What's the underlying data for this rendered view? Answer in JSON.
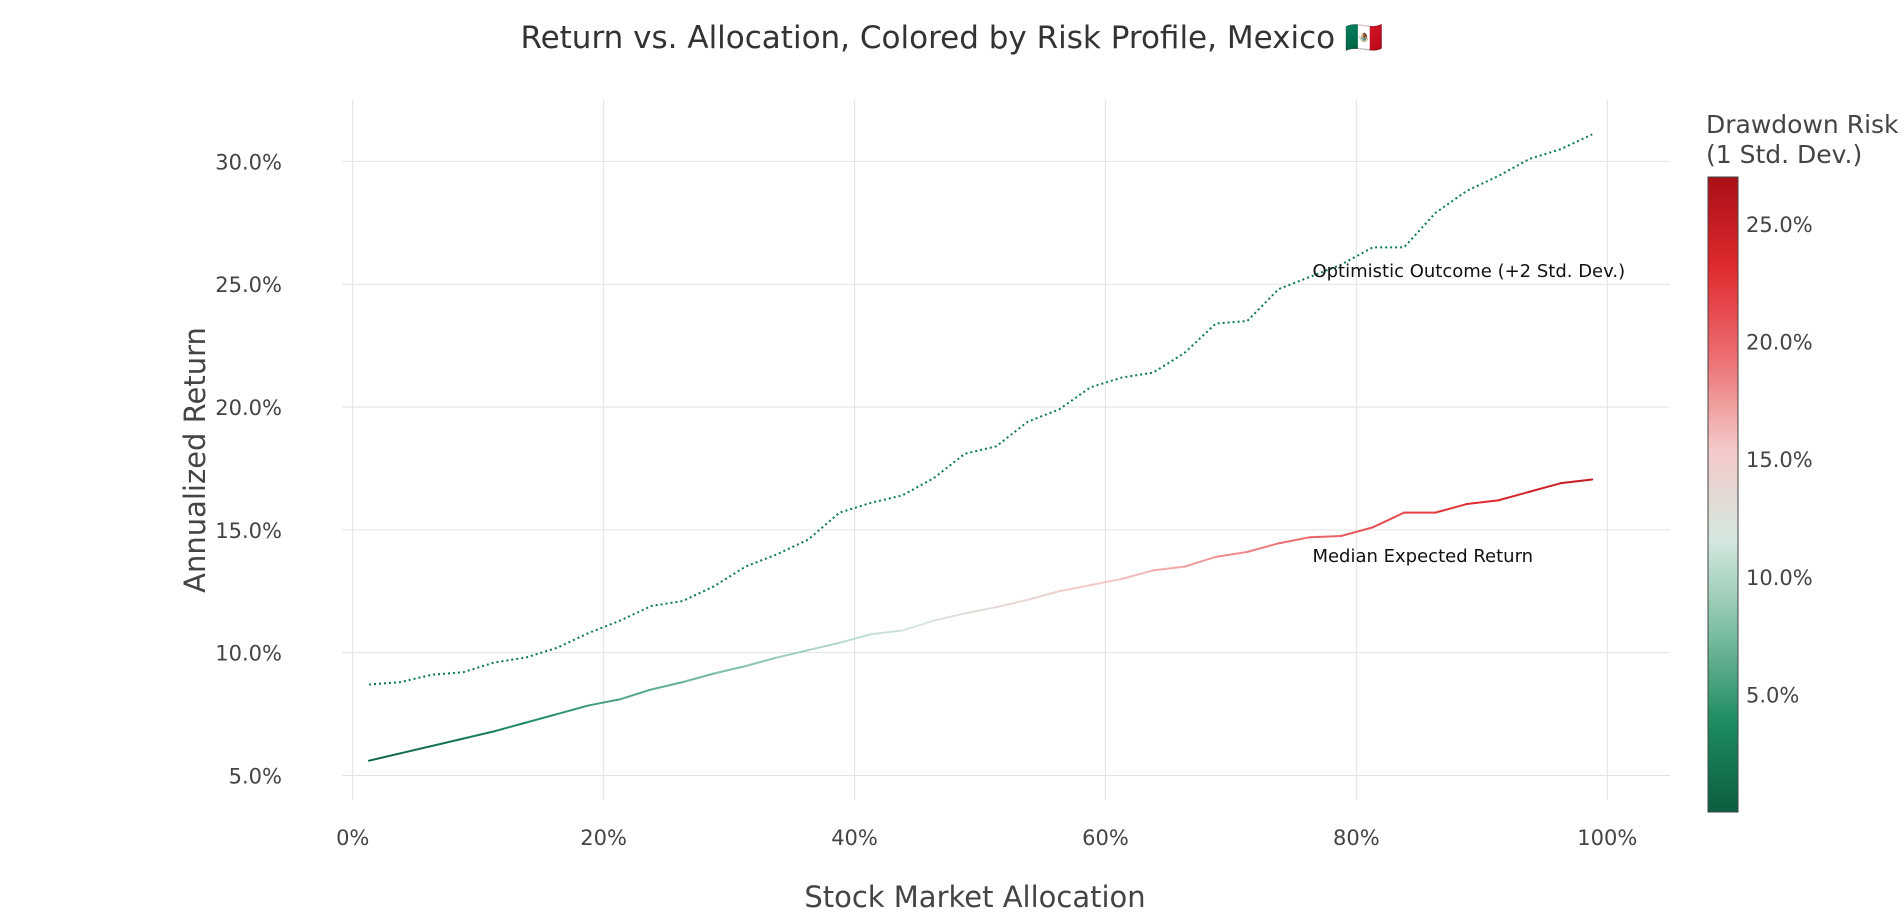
{
  "chart_data": {
    "type": "line",
    "title": "Return vs. Allocation, Colored by Risk Profile, Mexico 🇲🇽",
    "xlabel": "Stock Market Allocation",
    "ylabel": "Annualized Return",
    "xlim": [
      -5,
      105
    ],
    "ylim": [
      4.0,
      32.5
    ],
    "x_ticks": [
      0,
      20,
      40,
      60,
      80,
      100
    ],
    "x_tick_labels": [
      "0%",
      "20%",
      "40%",
      "60%",
      "80%",
      "100%"
    ],
    "y_ticks": [
      5,
      10,
      15,
      20,
      25,
      30
    ],
    "y_tick_labels": [
      "5.0%",
      "10.0%",
      "15.0%",
      "20.0%",
      "25.0%",
      "30.0%"
    ],
    "grid": true,
    "x": [
      1.3,
      3.8,
      6.3,
      8.8,
      11.3,
      13.8,
      16.3,
      18.8,
      21.3,
      23.8,
      26.3,
      28.8,
      31.3,
      33.8,
      36.3,
      38.8,
      41.3,
      43.8,
      46.3,
      48.8,
      51.3,
      53.8,
      56.3,
      58.8,
      61.3,
      63.8,
      66.3,
      68.8,
      71.3,
      73.8,
      76.3,
      78.8,
      81.3,
      83.8,
      86.3,
      88.8,
      91.3,
      93.8,
      96.3,
      98.8
    ],
    "series": [
      {
        "name": "Optimistic Outcome (+2 Std. Dev.)",
        "style": "dotted",
        "color": "#0a7a4e",
        "values": [
          8.7,
          8.8,
          9.1,
          9.2,
          9.6,
          9.8,
          10.2,
          10.8,
          11.3,
          11.9,
          12.1,
          12.7,
          13.5,
          14.0,
          14.6,
          15.7,
          16.1,
          16.4,
          17.1,
          18.1,
          18.4,
          19.4,
          19.9,
          20.8,
          21.2,
          21.4,
          22.2,
          23.4,
          23.5,
          24.8,
          25.3,
          25.8,
          26.5,
          26.5,
          27.9,
          28.8,
          29.4,
          30.1,
          30.5,
          31.1
        ]
      },
      {
        "name": "Median Expected Return",
        "style": "solid",
        "color_by": "risk",
        "values": [
          5.6,
          5.9,
          6.2,
          6.5,
          6.8,
          7.15,
          7.5,
          7.85,
          8.1,
          8.5,
          8.8,
          9.15,
          9.45,
          9.8,
          10.1,
          10.4,
          10.75,
          10.9,
          11.3,
          11.6,
          11.85,
          12.15,
          12.5,
          12.75,
          13.0,
          13.35,
          13.5,
          13.9,
          14.1,
          14.45,
          14.7,
          14.75,
          15.1,
          15.7,
          15.7,
          16.05,
          16.2,
          16.55,
          16.9,
          17.05
        ],
        "risk": [
          0.3,
          1.0,
          1.7,
          2.4,
          3.0,
          3.7,
          4.4,
          5.0,
          5.6,
          6.3,
          6.9,
          7.5,
          8.1,
          8.8,
          9.5,
          10.1,
          10.8,
          11.4,
          12.0,
          12.6,
          13.2,
          13.9,
          14.6,
          15.2,
          15.8,
          16.5,
          17.1,
          17.8,
          18.4,
          19.0,
          19.7,
          20.3,
          21.0,
          21.6,
          22.2,
          22.9,
          23.5,
          24.1,
          24.8,
          25.4
        ]
      }
    ],
    "annotations": [
      {
        "text": "Optimistic Outcome (+2 Std. Dev.)",
        "x": 76.5,
        "y": 25.3
      },
      {
        "text": "Median Expected Return",
        "x": 76.5,
        "y": 13.7
      }
    ],
    "colorbar": {
      "title_line1": "Drawdown Risk",
      "title_line2": "(1 Std. Dev.)",
      "range": [
        0,
        27.0
      ],
      "ticks": [
        5,
        10,
        15,
        20,
        25
      ],
      "tick_labels": [
        "5.0%",
        "10.0%",
        "15.0%",
        "20.0%",
        "25.0%"
      ],
      "colorscale": [
        "#0b5e3e",
        "#1f8c62",
        "#7fbfa3",
        "#d5e8df",
        "#f4c9c9",
        "#ec6f72",
        "#e02a2f",
        "#a80f16"
      ]
    }
  }
}
